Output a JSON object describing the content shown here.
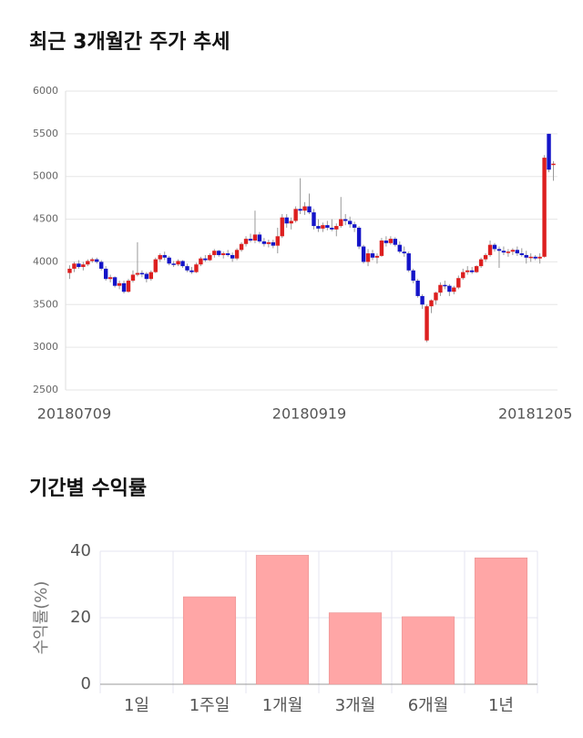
{
  "chart_data": [
    {
      "type": "candlestick",
      "title": "최근 3개월간 주가 추세",
      "categories": [
        null,
        "20180709",
        null,
        null,
        null,
        null,
        null,
        null,
        null,
        null,
        null,
        null,
        null,
        null,
        null,
        null,
        null,
        null,
        null,
        null,
        null,
        null,
        null,
        null,
        null,
        null,
        null,
        null,
        null,
        null,
        null,
        null,
        null,
        null,
        null,
        null,
        null,
        null,
        null,
        null,
        null,
        null,
        null,
        null,
        null,
        null,
        null,
        null,
        null,
        null,
        null,
        null,
        null,
        "20180919",
        null,
        null,
        null,
        null,
        null,
        null,
        null,
        null,
        null,
        null,
        null,
        null,
        null,
        null,
        null,
        null,
        null,
        null,
        null,
        null,
        null,
        null,
        null,
        null,
        null,
        null,
        null,
        null,
        null,
        null,
        null,
        null,
        null,
        null,
        null,
        null,
        null,
        null,
        null,
        null,
        null,
        null,
        null,
        null,
        null,
        null,
        null,
        null,
        null,
        "20181205",
        null,
        null,
        null,
        null
      ],
      "open": [
        3870,
        3920,
        3980,
        3940,
        3970,
        4010,
        4030,
        4000,
        3920,
        3800,
        3820,
        3720,
        3750,
        3650,
        3780,
        3850,
        3870,
        3860,
        3800,
        3880,
        4030,
        4080,
        4050,
        3980,
        3970,
        4010,
        3950,
        3900,
        3880,
        3970,
        4040,
        4020,
        4080,
        4130,
        4080,
        4100,
        4080,
        4040,
        4140,
        4210,
        4270,
        4250,
        4320,
        4240,
        4210,
        4230,
        4190,
        4300,
        4520,
        4450,
        4480,
        4620,
        4600,
        4650,
        4580,
        4420,
        4390,
        4430,
        4400,
        4380,
        4420,
        4500,
        4480,
        4440,
        4400,
        4180,
        4000,
        4100,
        4050,
        4070,
        4250,
        4220,
        4270,
        4200,
        4120,
        4100,
        3900,
        3780,
        3600,
        3080,
        3480,
        3550,
        3640,
        3730,
        3720,
        3650,
        3700,
        3810,
        3880,
        3900,
        3880,
        3950,
        4030,
        4080,
        4200,
        4150,
        4130,
        4110,
        4120,
        4140,
        4100,
        4080,
        4050,
        4060,
        4040,
        4060,
        5500,
        5150
      ],
      "high": [
        3960,
        4000,
        4020,
        4000,
        4030,
        4050,
        4050,
        4020,
        3950,
        3850,
        3830,
        3780,
        3780,
        3800,
        3900,
        4230,
        3900,
        3880,
        3900,
        4050,
        4100,
        4120,
        4070,
        4010,
        4030,
        4020,
        3980,
        3940,
        3990,
        4060,
        4080,
        4100,
        4150,
        4140,
        4120,
        4140,
        4110,
        4160,
        4230,
        4300,
        4330,
        4600,
        4350,
        4280,
        4260,
        4260,
        4400,
        4560,
        4560,
        4520,
        4650,
        4980,
        4700,
        4800,
        4620,
        4500,
        4460,
        4480,
        4500,
        4450,
        4760,
        4560,
        4530,
        4470,
        4420,
        4200,
        4150,
        4140,
        4100,
        4280,
        4300,
        4300,
        4290,
        4240,
        4180,
        4120,
        3920,
        3800,
        3620,
        3500,
        3560,
        3650,
        3760,
        3780,
        3740,
        3720,
        3840,
        3920,
        3950,
        3940,
        3960,
        4050,
        4100,
        4250,
        4220,
        4180,
        4180,
        4150,
        4160,
        4180,
        4160,
        4130,
        4100,
        4080,
        4100,
        5250,
        5500,
        5180
      ],
      "low": [
        3800,
        3880,
        3920,
        3900,
        3950,
        3990,
        3980,
        3900,
        3780,
        3760,
        3700,
        3680,
        3630,
        3640,
        3760,
        3830,
        3820,
        3760,
        3780,
        3870,
        4000,
        4020,
        3960,
        3940,
        3950,
        3930,
        3880,
        3860,
        3870,
        3950,
        4000,
        4010,
        4050,
        4060,
        4040,
        4060,
        4000,
        4020,
        4120,
        4180,
        4230,
        4220,
        4220,
        4180,
        4170,
        4160,
        4100,
        4280,
        4400,
        4380,
        4460,
        4560,
        4550,
        4560,
        4380,
        4350,
        4350,
        4370,
        4360,
        4300,
        4400,
        4430,
        4400,
        4350,
        4150,
        3980,
        3950,
        4020,
        3980,
        4060,
        4180,
        4200,
        4180,
        4100,
        4060,
        3880,
        3750,
        3580,
        3450,
        3060,
        3400,
        3500,
        3600,
        3680,
        3600,
        3620,
        3680,
        3790,
        3850,
        3860,
        3870,
        3930,
        4000,
        4060,
        4120,
        3930,
        4080,
        4060,
        4080,
        4070,
        4060,
        3980,
        4000,
        4020,
        3980,
        4050,
        5050,
        4950
      ],
      "close": [
        3920,
        3980,
        3940,
        3970,
        4010,
        4030,
        4000,
        3920,
        3800,
        3820,
        3720,
        3750,
        3650,
        3780,
        3850,
        3870,
        3860,
        3800,
        3880,
        4030,
        4080,
        4050,
        3980,
        3970,
        4010,
        3950,
        3900,
        3880,
        3970,
        4040,
        4020,
        4080,
        4130,
        4080,
        4100,
        4080,
        4040,
        4140,
        4210,
        4270,
        4250,
        4320,
        4240,
        4210,
        4230,
        4190,
        4300,
        4520,
        4450,
        4480,
        4620,
        4600,
        4650,
        4580,
        4420,
        4390,
        4430,
        4400,
        4380,
        4420,
        4500,
        4480,
        4440,
        4400,
        4180,
        4000,
        4100,
        4050,
        4070,
        4250,
        4220,
        4270,
        4200,
        4120,
        4100,
        3900,
        3780,
        3600,
        3500,
        3480,
        3550,
        3640,
        3730,
        3720,
        3650,
        3700,
        3810,
        3880,
        3900,
        3880,
        3950,
        4030,
        4080,
        4200,
        4150,
        4130,
        4110,
        4120,
        4140,
        4100,
        4080,
        4050,
        4060,
        4040,
        4060,
        5220,
        5080,
        5150
      ],
      "up_color": "#dd1f1f",
      "down_color": "#1414c8",
      "ylim": [
        2500,
        6000
      ],
      "yticks": [
        2500,
        3000,
        3500,
        4000,
        4500,
        5000,
        5500,
        6000
      ],
      "grid": true
    },
    {
      "type": "bar",
      "title": "기간별 수익률",
      "y_label": "수익률(%)",
      "categories": [
        "1일",
        "1주일",
        "1개월",
        "3개월",
        "6개월",
        "1년"
      ],
      "values": [
        0,
        26.3,
        38.8,
        21.5,
        20.3,
        38
      ],
      "color": "#ffa6a6",
      "ylim": [
        0,
        40
      ],
      "yticks": [
        0,
        20,
        40
      ],
      "grid": true
    }
  ]
}
